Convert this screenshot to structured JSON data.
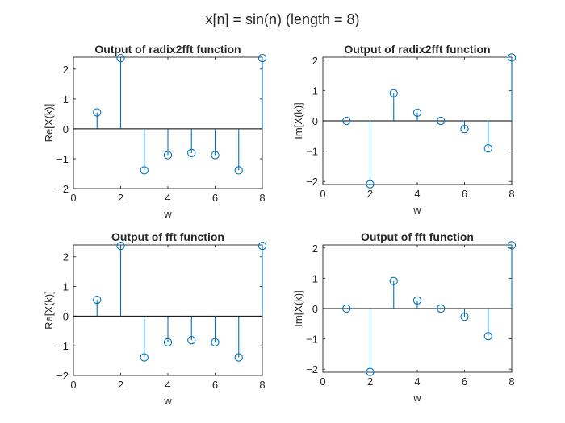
{
  "figure": {
    "title": "x[n] = sin(n) (length = 8)"
  },
  "colors": {
    "stem": "#0072BD",
    "axis": "#262626",
    "baseline": "#000000"
  },
  "chart_data": [
    {
      "type": "stem",
      "title": "Output of radix2fft function",
      "xlabel": "w",
      "ylabel": "Re[X(k)]",
      "xlim": [
        0,
        8
      ],
      "ylim": [
        -2,
        2.4
      ],
      "xticks": [
        0,
        2,
        4,
        6,
        8
      ],
      "yticks": [
        -2,
        -1,
        0,
        1,
        2
      ],
      "x": [
        1,
        2,
        3,
        4,
        5,
        6,
        7,
        8
      ],
      "y": [
        0.55,
        2.37,
        -1.39,
        -0.88,
        -0.81,
        -0.88,
        -1.39,
        2.37
      ]
    },
    {
      "type": "stem",
      "title": "Output of radix2fft function",
      "xlabel": "w",
      "ylabel": "Im[X(k)]",
      "xlim": [
        0,
        8
      ],
      "ylim": [
        -2.1,
        2.1
      ],
      "xticks": [
        0,
        2,
        4,
        6,
        8
      ],
      "yticks": [
        -2,
        -1,
        0,
        1,
        2
      ],
      "x": [
        1,
        2,
        3,
        4,
        5,
        6,
        7,
        8
      ],
      "y": [
        0,
        -2.09,
        0.91,
        0.27,
        0,
        -0.27,
        -0.91,
        2.09
      ]
    },
    {
      "type": "stem",
      "title": "Output of fft function",
      "xlabel": "w",
      "ylabel": "Re[X(k)]",
      "xlim": [
        0,
        8
      ],
      "ylim": [
        -2,
        2.4
      ],
      "xticks": [
        0,
        2,
        4,
        6,
        8
      ],
      "yticks": [
        -2,
        -1,
        0,
        1,
        2
      ],
      "x": [
        1,
        2,
        3,
        4,
        5,
        6,
        7,
        8
      ],
      "y": [
        0.55,
        2.37,
        -1.39,
        -0.88,
        -0.81,
        -0.88,
        -1.39,
        2.37
      ]
    },
    {
      "type": "stem",
      "title": "Output of fft function",
      "xlabel": "w",
      "ylabel": "Im[X(k)]",
      "xlim": [
        0,
        8
      ],
      "ylim": [
        -2.1,
        2.1
      ],
      "xticks": [
        0,
        2,
        4,
        6,
        8
      ],
      "yticks": [
        -2,
        -1,
        0,
        1,
        2
      ],
      "x": [
        1,
        2,
        3,
        4,
        5,
        6,
        7,
        8
      ],
      "y": [
        0,
        -2.09,
        0.91,
        0.27,
        0,
        -0.27,
        -0.91,
        2.09
      ]
    }
  ]
}
